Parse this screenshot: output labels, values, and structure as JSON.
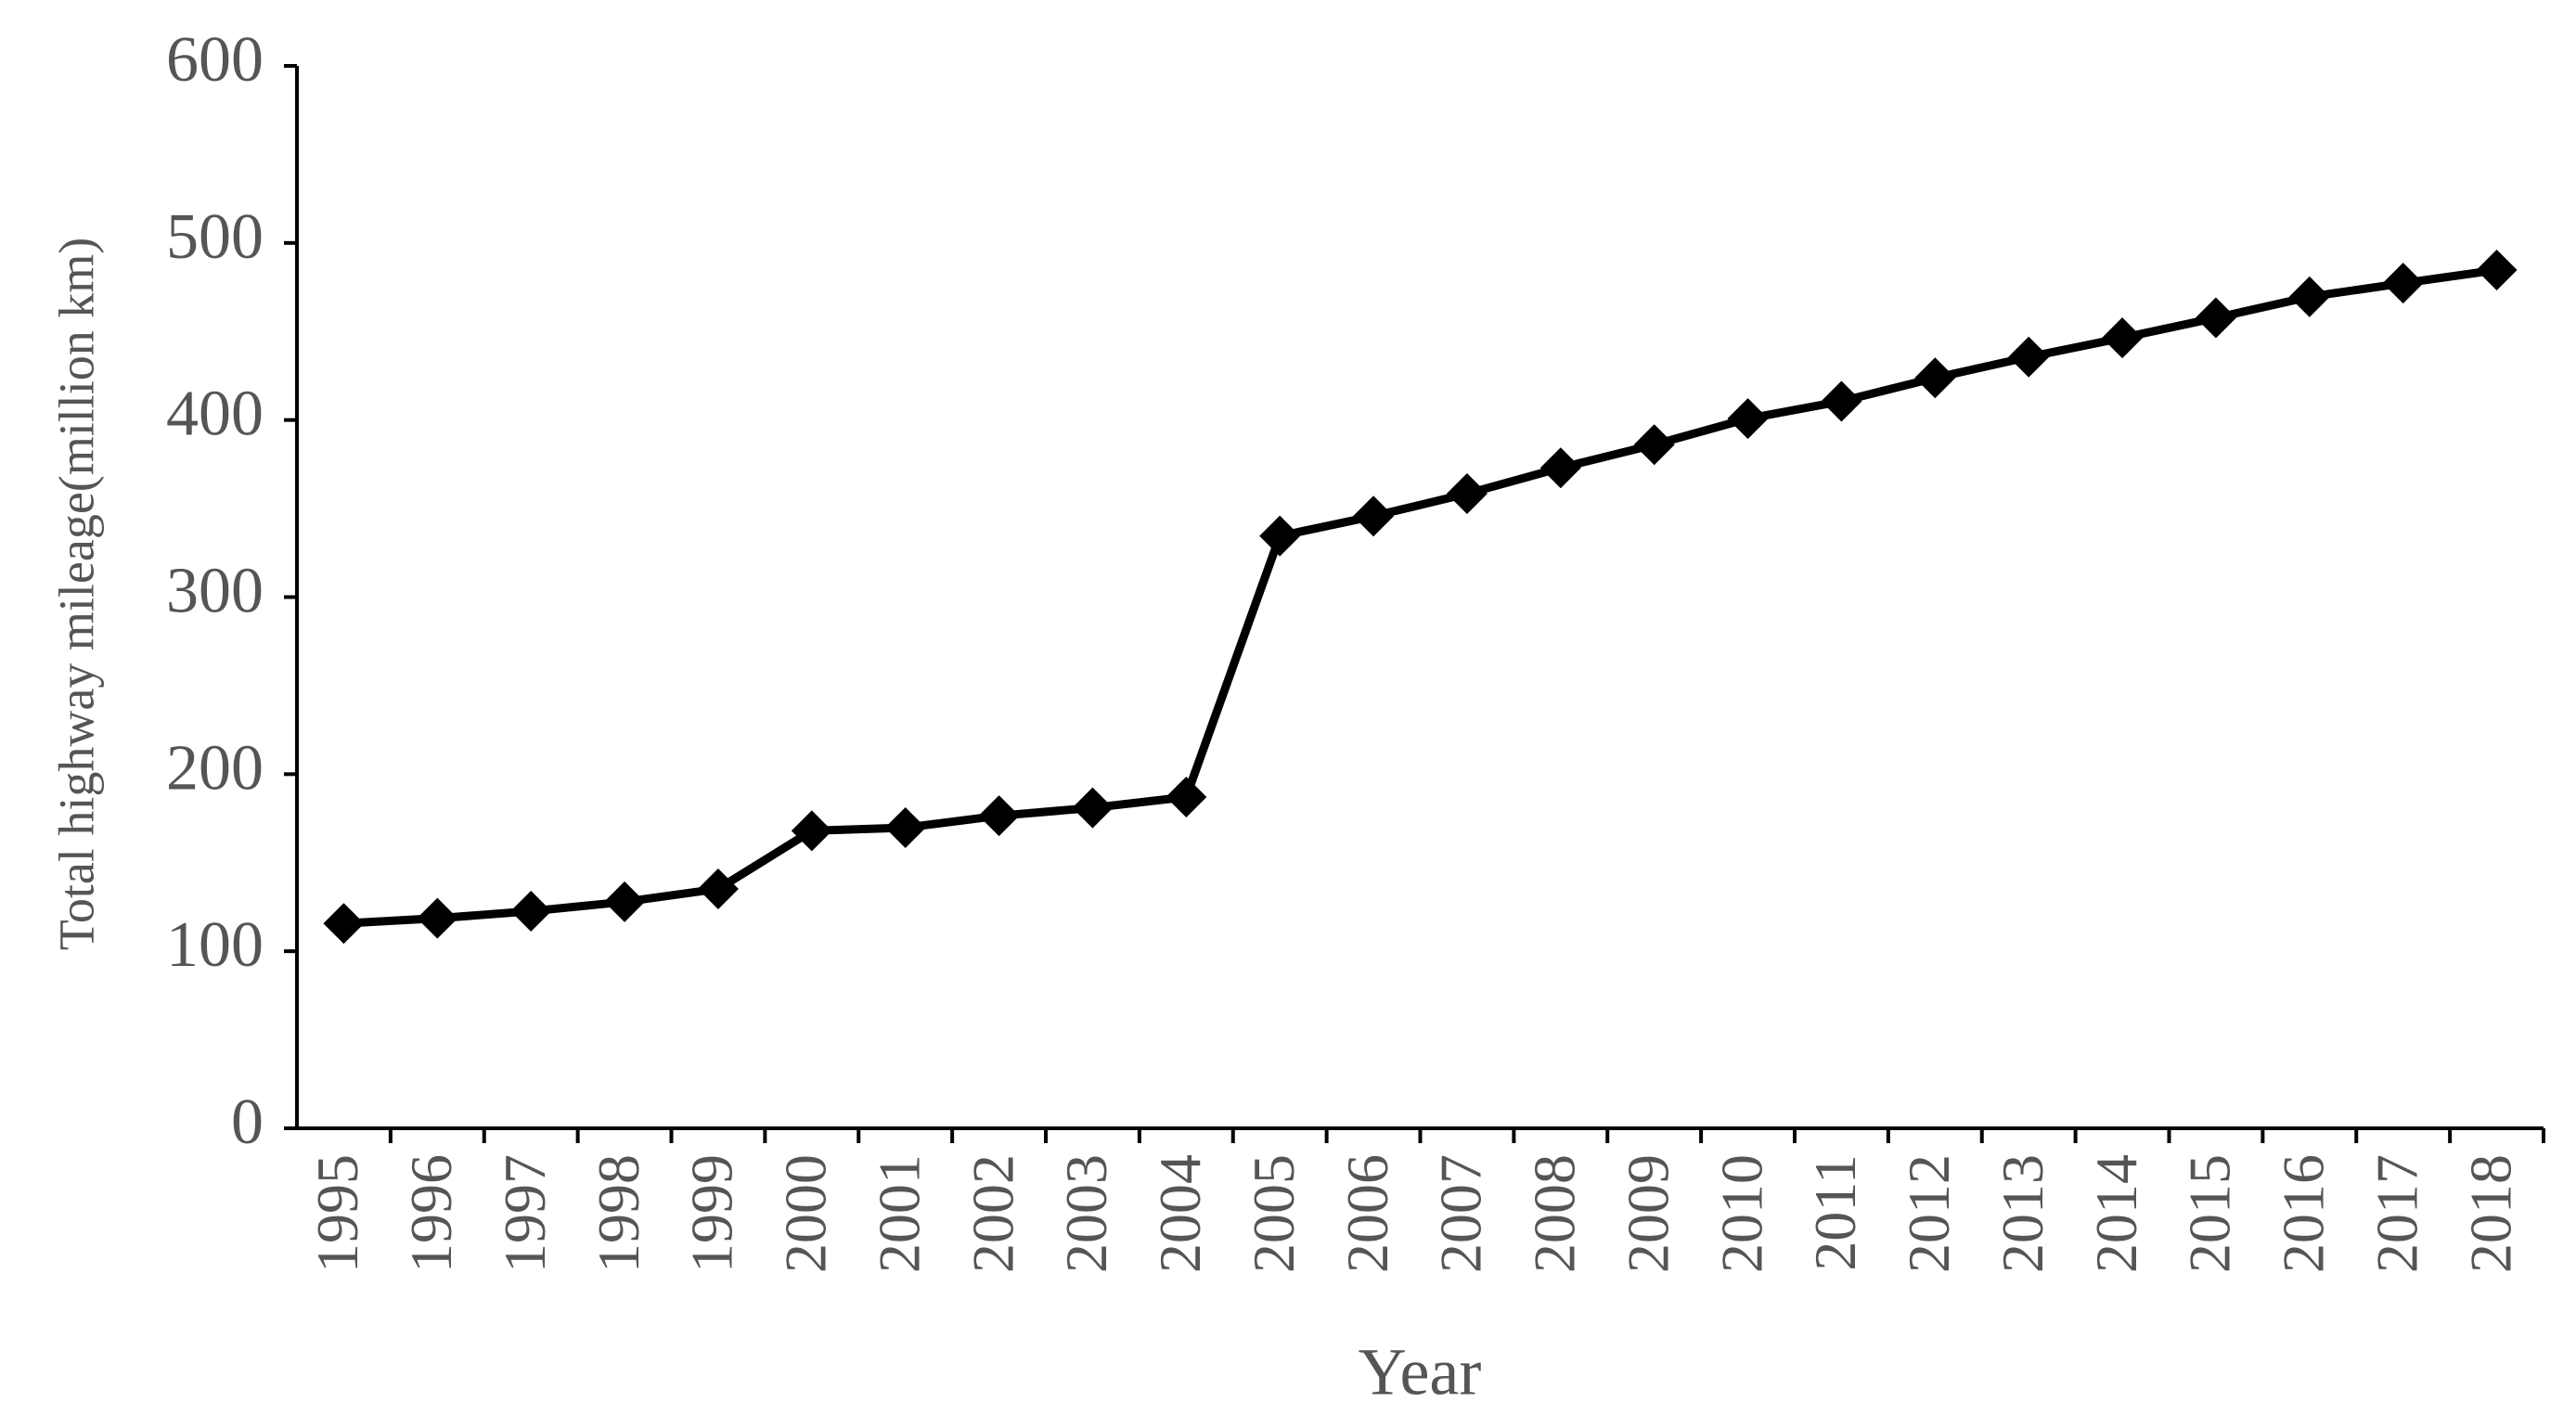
{
  "chart_data": {
    "type": "line",
    "y_label": "Total highway mileage(million km)",
    "x_label": "Year",
    "categories": [
      "1995",
      "1996",
      "1997",
      "1998",
      "1999",
      "2000",
      "2001",
      "2002",
      "2003",
      "2004",
      "2005",
      "2006",
      "2007",
      "2008",
      "2009",
      "2010",
      "2011",
      "2012",
      "2013",
      "2014",
      "2015",
      "2016",
      "2017",
      "2018"
    ],
    "values": [
      115.7,
      118.6,
      122.6,
      127.9,
      135.2,
      168.0,
      169.8,
      176.5,
      181.0,
      187.1,
      334.5,
      345.7,
      358.4,
      373.0,
      386.1,
      400.8,
      410.6,
      423.8,
      435.6,
      446.4,
      457.7,
      469.6,
      477.3,
      484.7
    ],
    "color": "#000000",
    "ylim": [
      0,
      600
    ],
    "yticks": [
      0,
      100,
      200,
      300,
      400,
      500,
      600
    ],
    "grid": false
  }
}
